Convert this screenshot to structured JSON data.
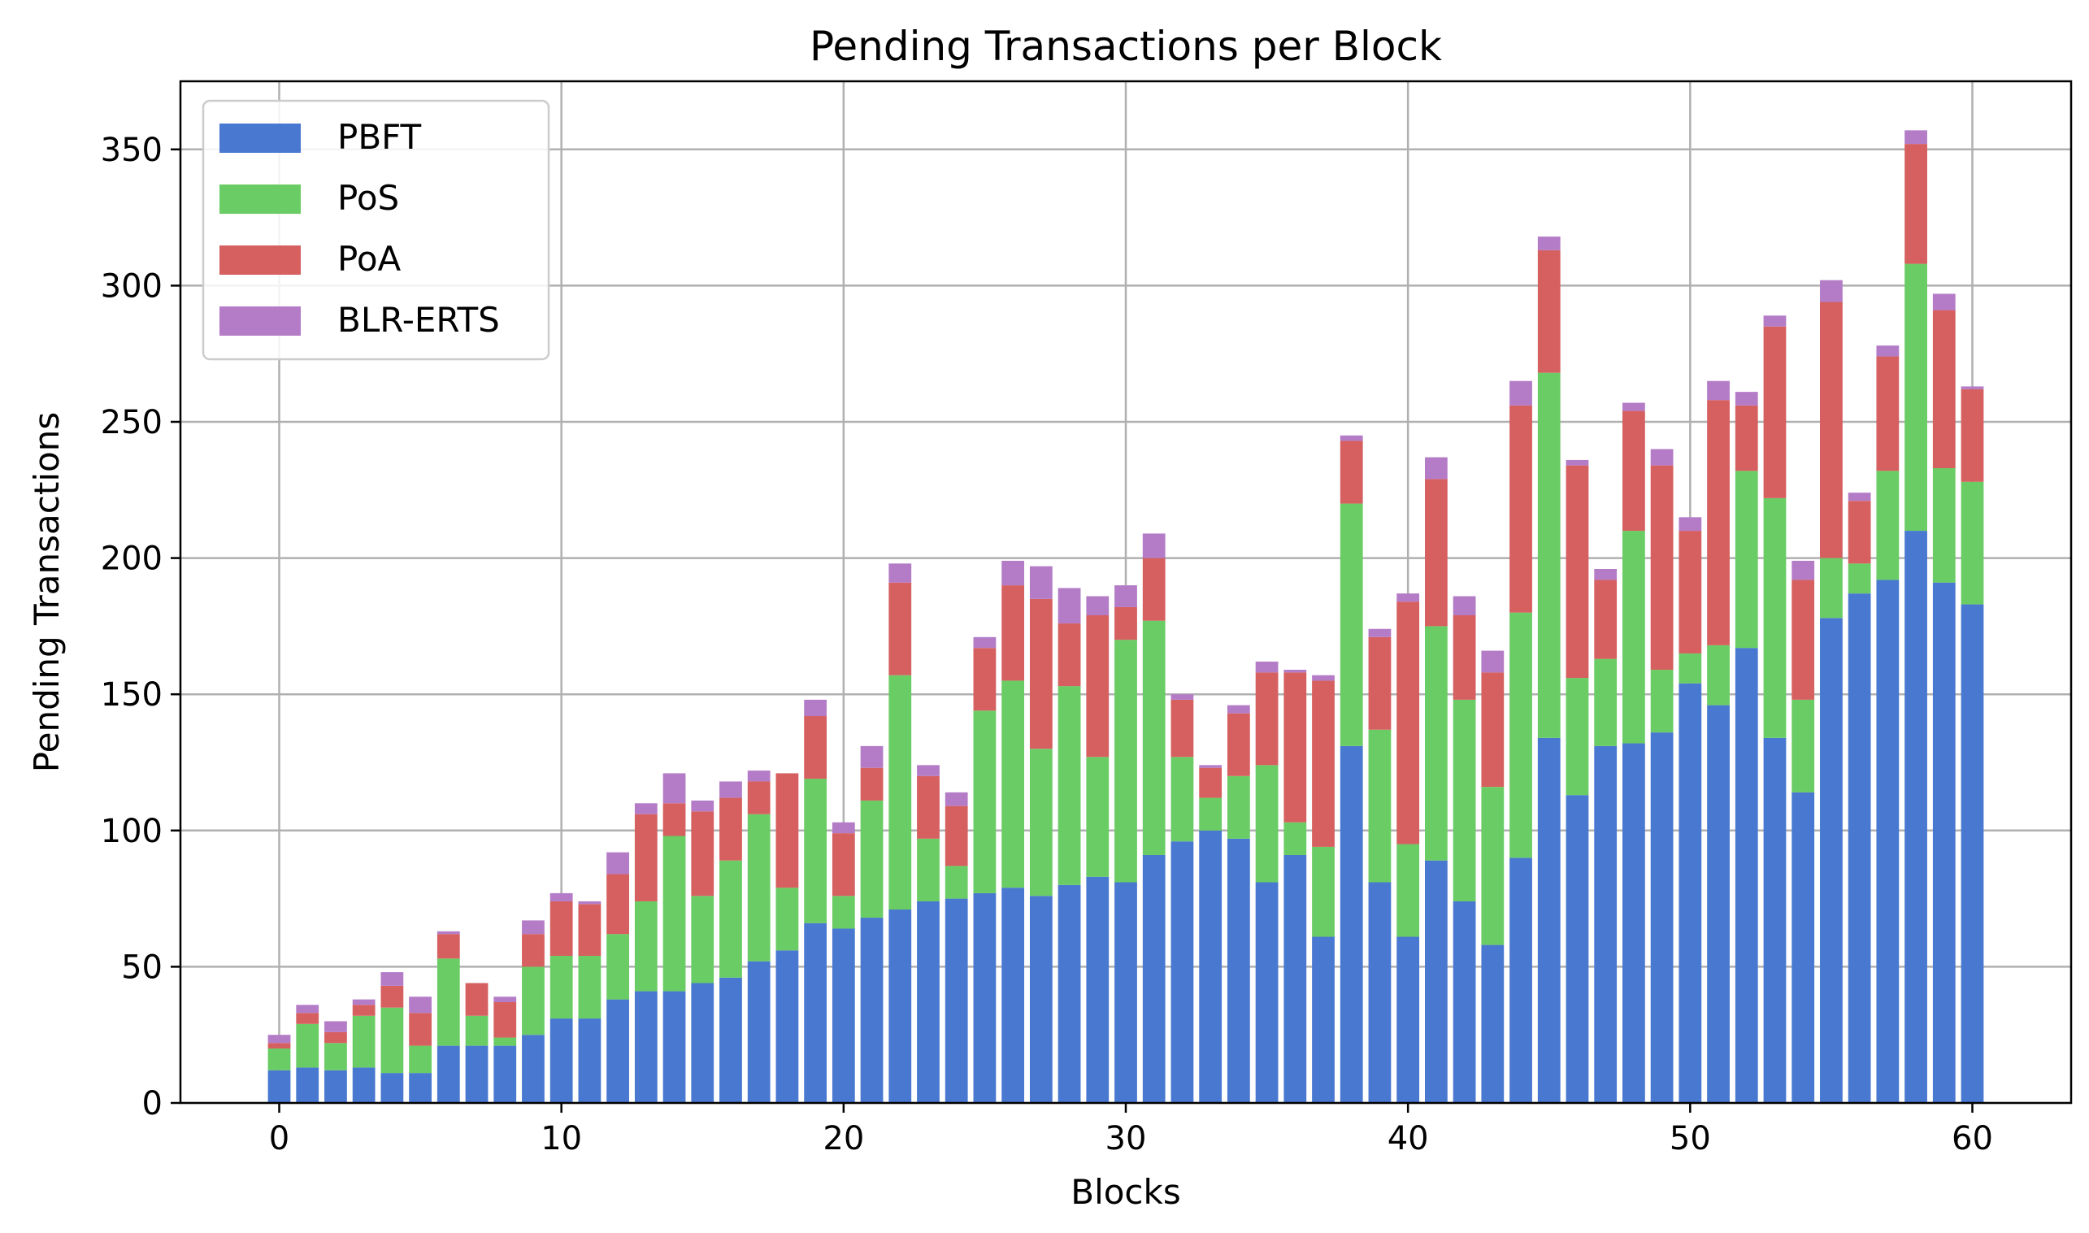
{
  "chart_data": {
    "type": "bar",
    "stacked": true,
    "title": "Pending Transactions per Block",
    "xlabel": "Blocks",
    "ylabel": "Pending Transactions",
    "xlim": [
      -3.5,
      63.5
    ],
    "ylim": [
      0,
      375
    ],
    "x_ticks": [
      0,
      10,
      20,
      30,
      40,
      50,
      60
    ],
    "y_ticks": [
      0,
      50,
      100,
      150,
      200,
      250,
      300,
      350
    ],
    "grid": true,
    "legend_position": "top-left",
    "x": [
      0,
      1,
      2,
      3,
      4,
      5,
      6,
      7,
      8,
      9,
      10,
      11,
      12,
      13,
      14,
      15,
      16,
      17,
      18,
      19,
      20,
      21,
      22,
      23,
      24,
      25,
      26,
      27,
      28,
      29,
      30,
      31,
      32,
      33,
      34,
      35,
      36,
      37,
      38,
      39,
      40,
      41,
      42,
      43,
      44,
      45,
      46,
      47,
      48,
      49,
      50,
      51,
      52,
      53,
      54,
      55,
      56,
      57,
      58,
      59,
      60
    ],
    "series": [
      {
        "name": "PBFT",
        "color": "#4878d0",
        "values": [
          12,
          13,
          12,
          13,
          11,
          11,
          21,
          21,
          21,
          25,
          31,
          31,
          38,
          41,
          41,
          44,
          46,
          52,
          56,
          66,
          64,
          68,
          71,
          74,
          75,
          77,
          79,
          76,
          80,
          83,
          81,
          91,
          96,
          100,
          97,
          81,
          91,
          61,
          131,
          81,
          61,
          89,
          74,
          58,
          90,
          134,
          113,
          131,
          132,
          136,
          154,
          146,
          167,
          134,
          114,
          178,
          187,
          192,
          210,
          191,
          183
        ]
      },
      {
        "name": "PoS",
        "color": "#6acc64",
        "values": [
          8,
          16,
          10,
          19,
          24,
          10,
          32,
          11,
          3,
          25,
          23,
          23,
          24,
          33,
          57,
          32,
          43,
          54,
          23,
          53,
          12,
          43,
          86,
          23,
          12,
          67,
          76,
          54,
          73,
          44,
          89,
          86,
          31,
          12,
          23,
          43,
          12,
          33,
          89,
          56,
          34,
          86,
          74,
          58,
          90,
          134,
          43,
          32,
          78,
          23,
          11,
          22,
          65,
          88,
          34,
          22,
          11,
          40,
          98,
          42,
          45
        ]
      },
      {
        "name": "PoA",
        "color": "#d65f5f",
        "values": [
          2,
          4,
          4,
          4,
          8,
          12,
          9,
          12,
          13,
          12,
          20,
          19,
          22,
          32,
          12,
          31,
          23,
          12,
          42,
          23,
          23,
          12,
          34,
          23,
          22,
          23,
          35,
          55,
          23,
          52,
          12,
          23,
          21,
          11,
          23,
          34,
          55,
          61,
          23,
          34,
          89,
          54,
          31,
          42,
          76,
          45,
          78,
          29,
          44,
          75,
          45,
          90,
          24,
          63,
          44,
          94,
          23,
          42,
          44,
          58,
          34
        ]
      },
      {
        "name": "BLR-ERTS",
        "color": "#b47cc7",
        "values": [
          3,
          3,
          4,
          2,
          5,
          6,
          1,
          0,
          2,
          5,
          3,
          1,
          8,
          4,
          11,
          4,
          6,
          4,
          0,
          6,
          4,
          8,
          7,
          4,
          5,
          4,
          9,
          12,
          13,
          7,
          8,
          9,
          2,
          1,
          3,
          4,
          1,
          2,
          2,
          3,
          3,
          8,
          7,
          8,
          9,
          5,
          2,
          4,
          3,
          6,
          5,
          7,
          5,
          4,
          7,
          8,
          3,
          4,
          5,
          6,
          1
        ]
      }
    ]
  }
}
